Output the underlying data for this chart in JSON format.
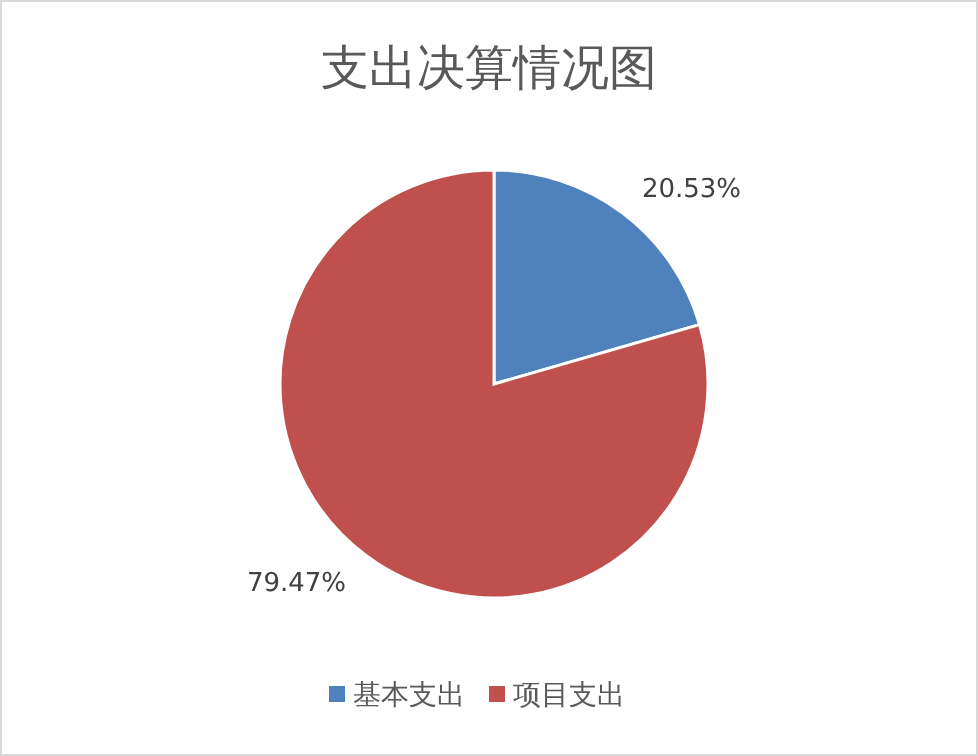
{
  "chart_data": {
    "type": "pie",
    "title": "支出决算情况图",
    "categories": [
      "基本支出",
      "项目支出"
    ],
    "values": [
      20.53,
      79.47
    ],
    "colors": [
      "#4f81bd",
      "#c0504d"
    ],
    "value_labels": [
      "20.53%",
      "79.47%"
    ],
    "legend": "bottom"
  }
}
